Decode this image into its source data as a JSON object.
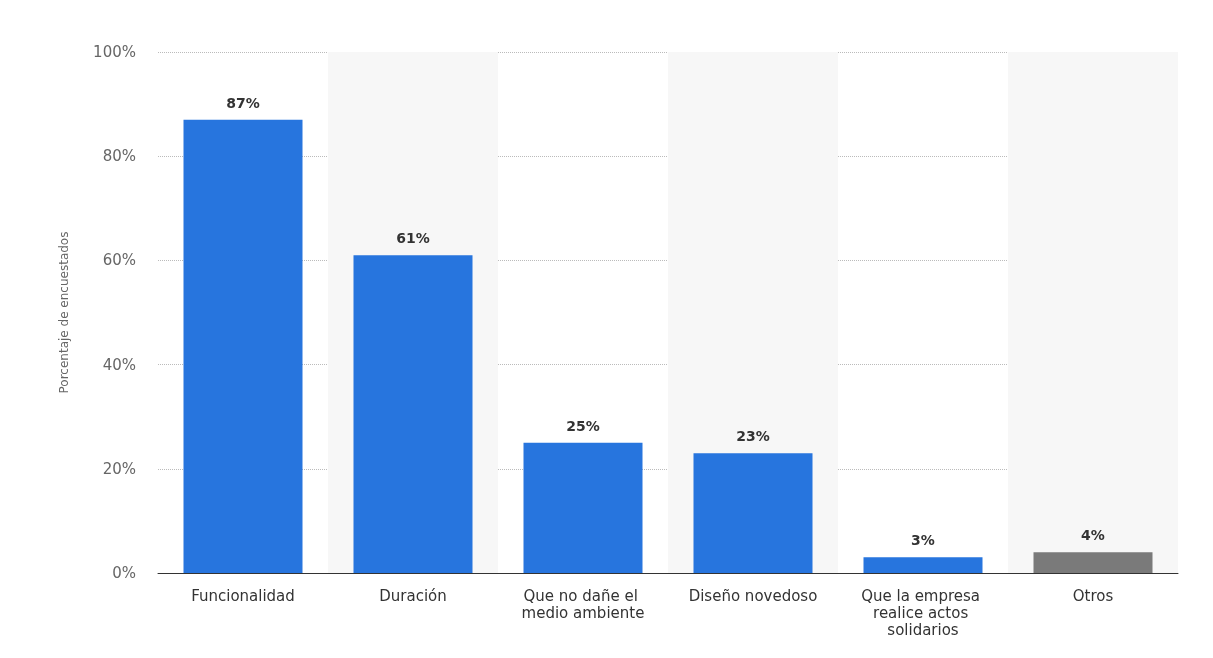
{
  "chart_data": {
    "type": "bar",
    "ylabel": "Porcentaje de encuestados",
    "categories": [
      "Funcionalidad",
      "Duración",
      "Que no dañe el medio ambiente",
      "Diseño novedoso",
      "Que la empresa realice actos solidarios",
      "Otros"
    ],
    "values": [
      87,
      61,
      25,
      23,
      3,
      4
    ],
    "colors": [
      "#2775de",
      "#2775de",
      "#2775de",
      "#2775de",
      "#2775de",
      "#7a7a7a"
    ],
    "value_labels": [
      "87%",
      "61%",
      "25%",
      "23%",
      "3%",
      "4%"
    ],
    "ylim": [
      0,
      100
    ],
    "yticks": [
      {
        "value": 0,
        "label": "0%"
      },
      {
        "value": 20,
        "label": "20%"
      },
      {
        "value": 40,
        "label": "40%"
      },
      {
        "value": 60,
        "label": "60%"
      },
      {
        "value": 80,
        "label": "80%"
      },
      {
        "value": 100,
        "label": "100%"
      }
    ],
    "grid": "y"
  }
}
